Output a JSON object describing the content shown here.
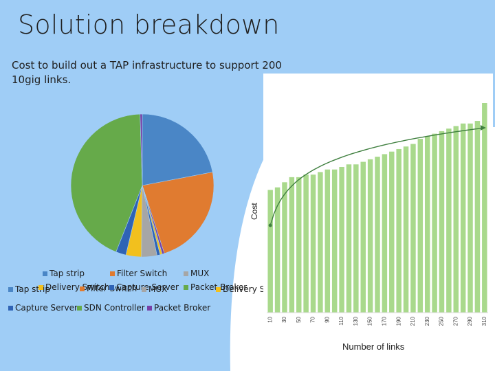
{
  "title": "Solution breakdown",
  "subtitle": "Cost to build out a TAP infrastructure to support 200 10gig links.",
  "colors": {
    "background": "#9fcdf6",
    "tap_strip": "#4a86c6",
    "filter_switch": "#e07b30",
    "mux": "#a6a6a6",
    "delivery_switch": "#f2c01e",
    "capture_server": "#2f63b5",
    "sdn_controller": "#66aa4a",
    "packet_broker": "#7840a6",
    "bar": "#a9d98c",
    "trend": "#3f7f3f"
  },
  "legend": {
    "row1": [
      "Tap strip",
      "Filter Switch",
      "MUX"
    ],
    "row2": [
      "Tap strip",
      "Delivery Switch",
      "Filter Switch",
      "Capture Server",
      "MUX",
      "Packet Broker",
      "Delivery Switch"
    ],
    "row3": [
      "Capture Server",
      "SDN Controller",
      "Packet Broker"
    ]
  },
  "chart_data": [
    {
      "type": "pie",
      "title": "",
      "categories": [
        "Tap strip",
        "Filter Switch",
        "Packet Broker",
        "Delivery Switch",
        "Capture Server",
        "MUX",
        "Delivery Switch",
        "Capture Server",
        "SDN Controller",
        "Packet Broker"
      ],
      "values": [
        22,
        23,
        0.5,
        0.5,
        0.7,
        3.5,
        3.5,
        2.3,
        43.5,
        0.5
      ]
    },
    {
      "type": "bar",
      "title": "",
      "xlabel": "Number of links",
      "ylabel": "Cost",
      "categories": [
        "10",
        "30",
        "50",
        "70",
        "90",
        "110",
        "130",
        "150",
        "170",
        "190",
        "210",
        "230",
        "250",
        "270",
        "290",
        "310"
      ],
      "x": [
        10,
        20,
        30,
        40,
        50,
        60,
        70,
        80,
        90,
        100,
        110,
        120,
        130,
        140,
        150,
        160,
        170,
        180,
        190,
        200,
        210,
        220,
        230,
        240,
        250,
        260,
        270,
        280,
        290,
        300,
        310
      ],
      "values": [
        48,
        49,
        51,
        53,
        53,
        54,
        54,
        55,
        56,
        56,
        57,
        58,
        58,
        59,
        60,
        61,
        62,
        63,
        64,
        65,
        66,
        68,
        69,
        70,
        71,
        72,
        73,
        74,
        74,
        75,
        82
      ],
      "trendline": "logarithmic",
      "ylim": [
        0,
        90
      ],
      "grid": false
    }
  ]
}
